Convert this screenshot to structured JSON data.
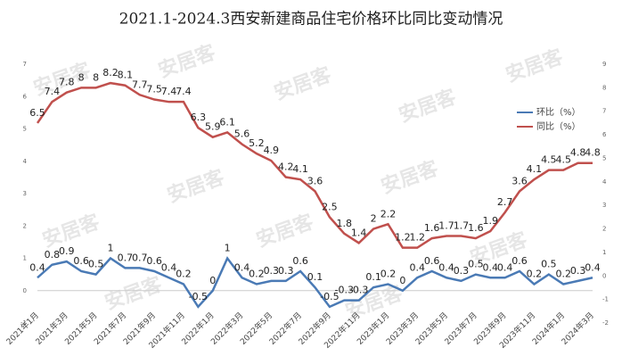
{
  "chart_data": {
    "type": "line",
    "title": "2021.1-2024.3西安新建商品住宅价格环比同比变动情况",
    "watermark": "安居客",
    "categories": [
      "2021年1月",
      null,
      "2021年3月",
      null,
      "2021年5月",
      null,
      "2021年7月",
      null,
      "2021年9月",
      null,
      "2021年11月",
      null,
      "2022年1月",
      null,
      "2022年3月",
      null,
      "2022年5月",
      null,
      "2022年7月",
      null,
      "2022年9月",
      null,
      "2022年11月",
      null,
      "2023年1月",
      null,
      "2023年3月",
      null,
      "2023年5月",
      null,
      "2023年7月",
      null,
      "2023年9月",
      null,
      "2023年11月",
      null,
      "2024年1月",
      null,
      "2024年3月"
    ],
    "series": [
      {
        "name": "环比（%）",
        "color": "#4a7ab5",
        "axis": "y",
        "values": [
          0.4,
          0.8,
          0.9,
          0.6,
          0.5,
          1,
          0.7,
          0.7,
          0.6,
          0.4,
          0.2,
          -0.5,
          0,
          1,
          0.4,
          0.2,
          0.3,
          0.3,
          0.6,
          0.1,
          -0.5,
          -0.3,
          -0.3,
          0.1,
          0.2,
          0,
          0.4,
          0.6,
          0.4,
          0.3,
          0.5,
          0.4,
          0.4,
          0.6,
          0.2,
          0.5,
          0.2,
          0.3,
          0.4
        ]
      },
      {
        "name": "同比（%）",
        "color": "#c0504d",
        "axis": "y2",
        "values": [
          6.5,
          7.4,
          7.8,
          8,
          8,
          8.2,
          8.1,
          7.7,
          7.5,
          7.4,
          7.4,
          6.3,
          5.9,
          6.1,
          5.6,
          5.2,
          4.9,
          4.2,
          4.1,
          3.6,
          2.5,
          1.8,
          1.4,
          2,
          2.2,
          1.2,
          1.2,
          1.6,
          1.7,
          1.7,
          1.6,
          1.9,
          2.7,
          3.6,
          4.1,
          4.5,
          4.5,
          4.8,
          4.8
        ]
      }
    ],
    "ylim": [
      -1,
      7
    ],
    "yticks": [
      -1,
      0,
      1,
      2,
      3,
      4,
      5,
      6,
      7
    ],
    "y2lim": [
      -2,
      9
    ],
    "y2ticks": [
      -2,
      -1,
      0,
      1,
      2,
      3,
      4,
      5,
      6,
      7,
      8,
      9
    ],
    "legend": "right",
    "grid": false
  }
}
